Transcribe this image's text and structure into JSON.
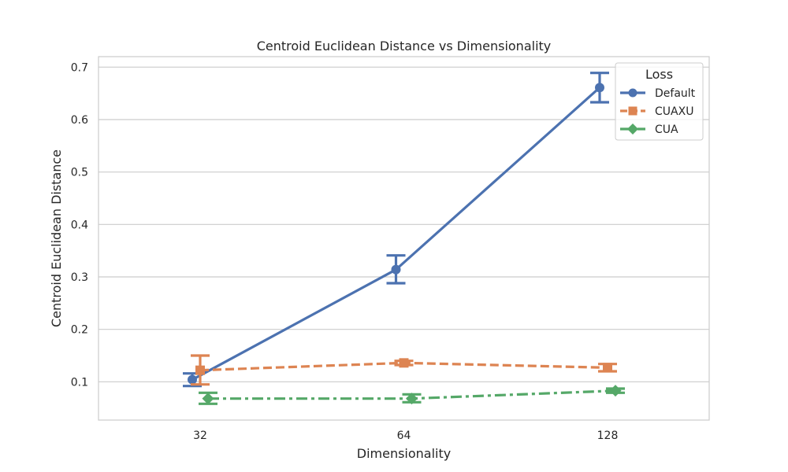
{
  "chart_data": {
    "type": "line",
    "title": "Centroid Euclidean Distance vs Dimensionality",
    "xlabel": "Dimensionality",
    "ylabel": "Centroid Euclidean Distance",
    "categories": [
      "32",
      "64",
      "128"
    ],
    "ylim": [
      0.027,
      0.72
    ],
    "yticks": [
      0.1,
      0.2,
      0.3,
      0.4,
      0.5,
      0.6,
      0.7
    ],
    "ytick_labels": [
      "0.1",
      "0.2",
      "0.3",
      "0.4",
      "0.5",
      "0.6",
      "0.7"
    ],
    "grid": true,
    "legend": {
      "title": "Loss",
      "placement": "top-right"
    },
    "series": [
      {
        "name": "Default",
        "color": "#4c72b0",
        "marker": "circle",
        "linestyle": "solid",
        "values": [
          0.104,
          0.314,
          0.661
        ],
        "err_low": [
          0.092,
          0.288,
          0.633
        ],
        "err_high": [
          0.116,
          0.341,
          0.689
        ]
      },
      {
        "name": "CUAXU",
        "color": "#dd8452",
        "marker": "square",
        "linestyle": "dashed",
        "values": [
          0.122,
          0.136,
          0.127
        ],
        "err_low": [
          0.095,
          0.132,
          0.12
        ],
        "err_high": [
          0.15,
          0.14,
          0.134
        ]
      },
      {
        "name": "CUA",
        "color": "#55a868",
        "marker": "diamond",
        "linestyle": "dashdot",
        "values": [
          0.068,
          0.068,
          0.083
        ],
        "err_low": [
          0.058,
          0.061,
          0.079
        ],
        "err_high": [
          0.079,
          0.076,
          0.087
        ]
      }
    ]
  }
}
